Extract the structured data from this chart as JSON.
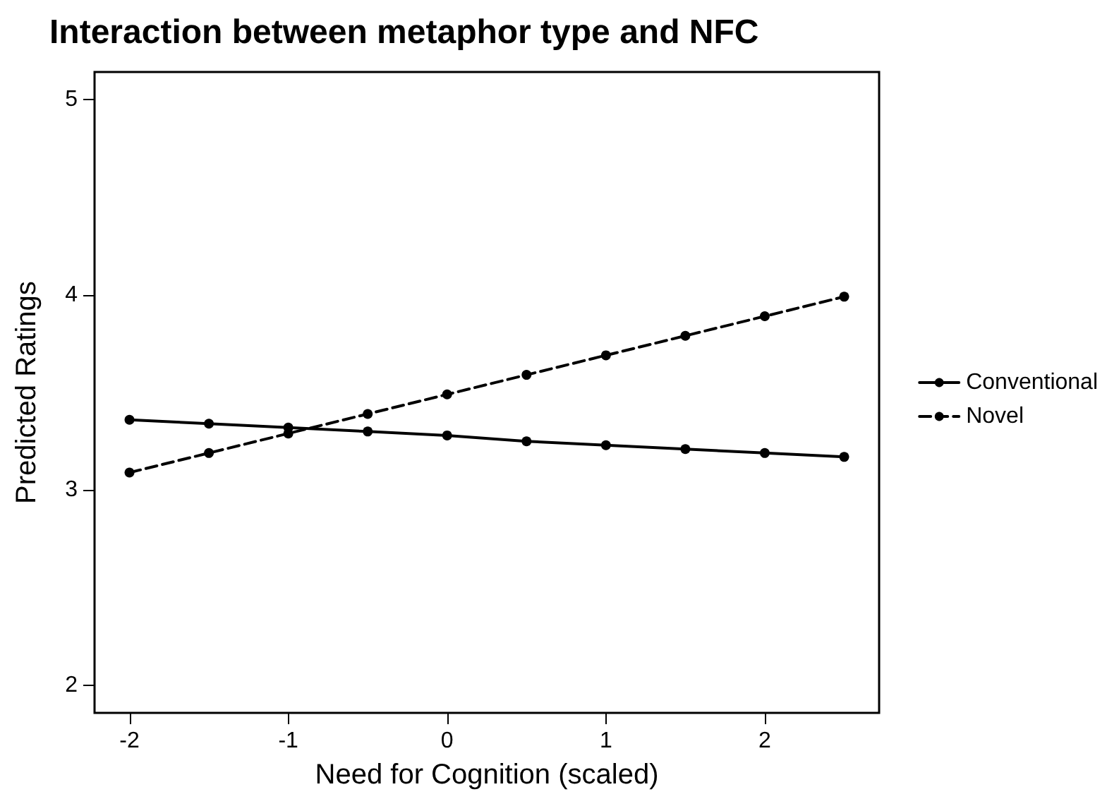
{
  "chart_data": {
    "type": "line",
    "title": "Interaction between metaphor type and NFC",
    "xlabel": "Need for Cognition (scaled)",
    "ylabel": "Predicted Ratings",
    "x": [
      -2,
      -1.5,
      -1,
      -0.5,
      0,
      0.5,
      1,
      1.5,
      2,
      2.5
    ],
    "series": [
      {
        "name": "Conventional",
        "color": "#000000",
        "line_style": "solid",
        "values": [
          3.36,
          3.34,
          3.32,
          3.3,
          3.28,
          3.25,
          3.23,
          3.21,
          3.19,
          3.17
        ]
      },
      {
        "name": "Novel",
        "color": "#000000",
        "line_style": "dashed",
        "values": [
          3.09,
          3.19,
          3.29,
          3.39,
          3.49,
          3.59,
          3.69,
          3.79,
          3.89,
          3.99
        ]
      }
    ],
    "xlim": [
      -2.22,
      2.72
    ],
    "xticks": [
      -2,
      -1,
      0,
      1,
      2
    ],
    "ylim": [
      1.86,
      5.14
    ],
    "yticks": [
      2,
      3,
      4,
      5
    ],
    "grid": false,
    "legend": "right",
    "marker": "circle"
  }
}
